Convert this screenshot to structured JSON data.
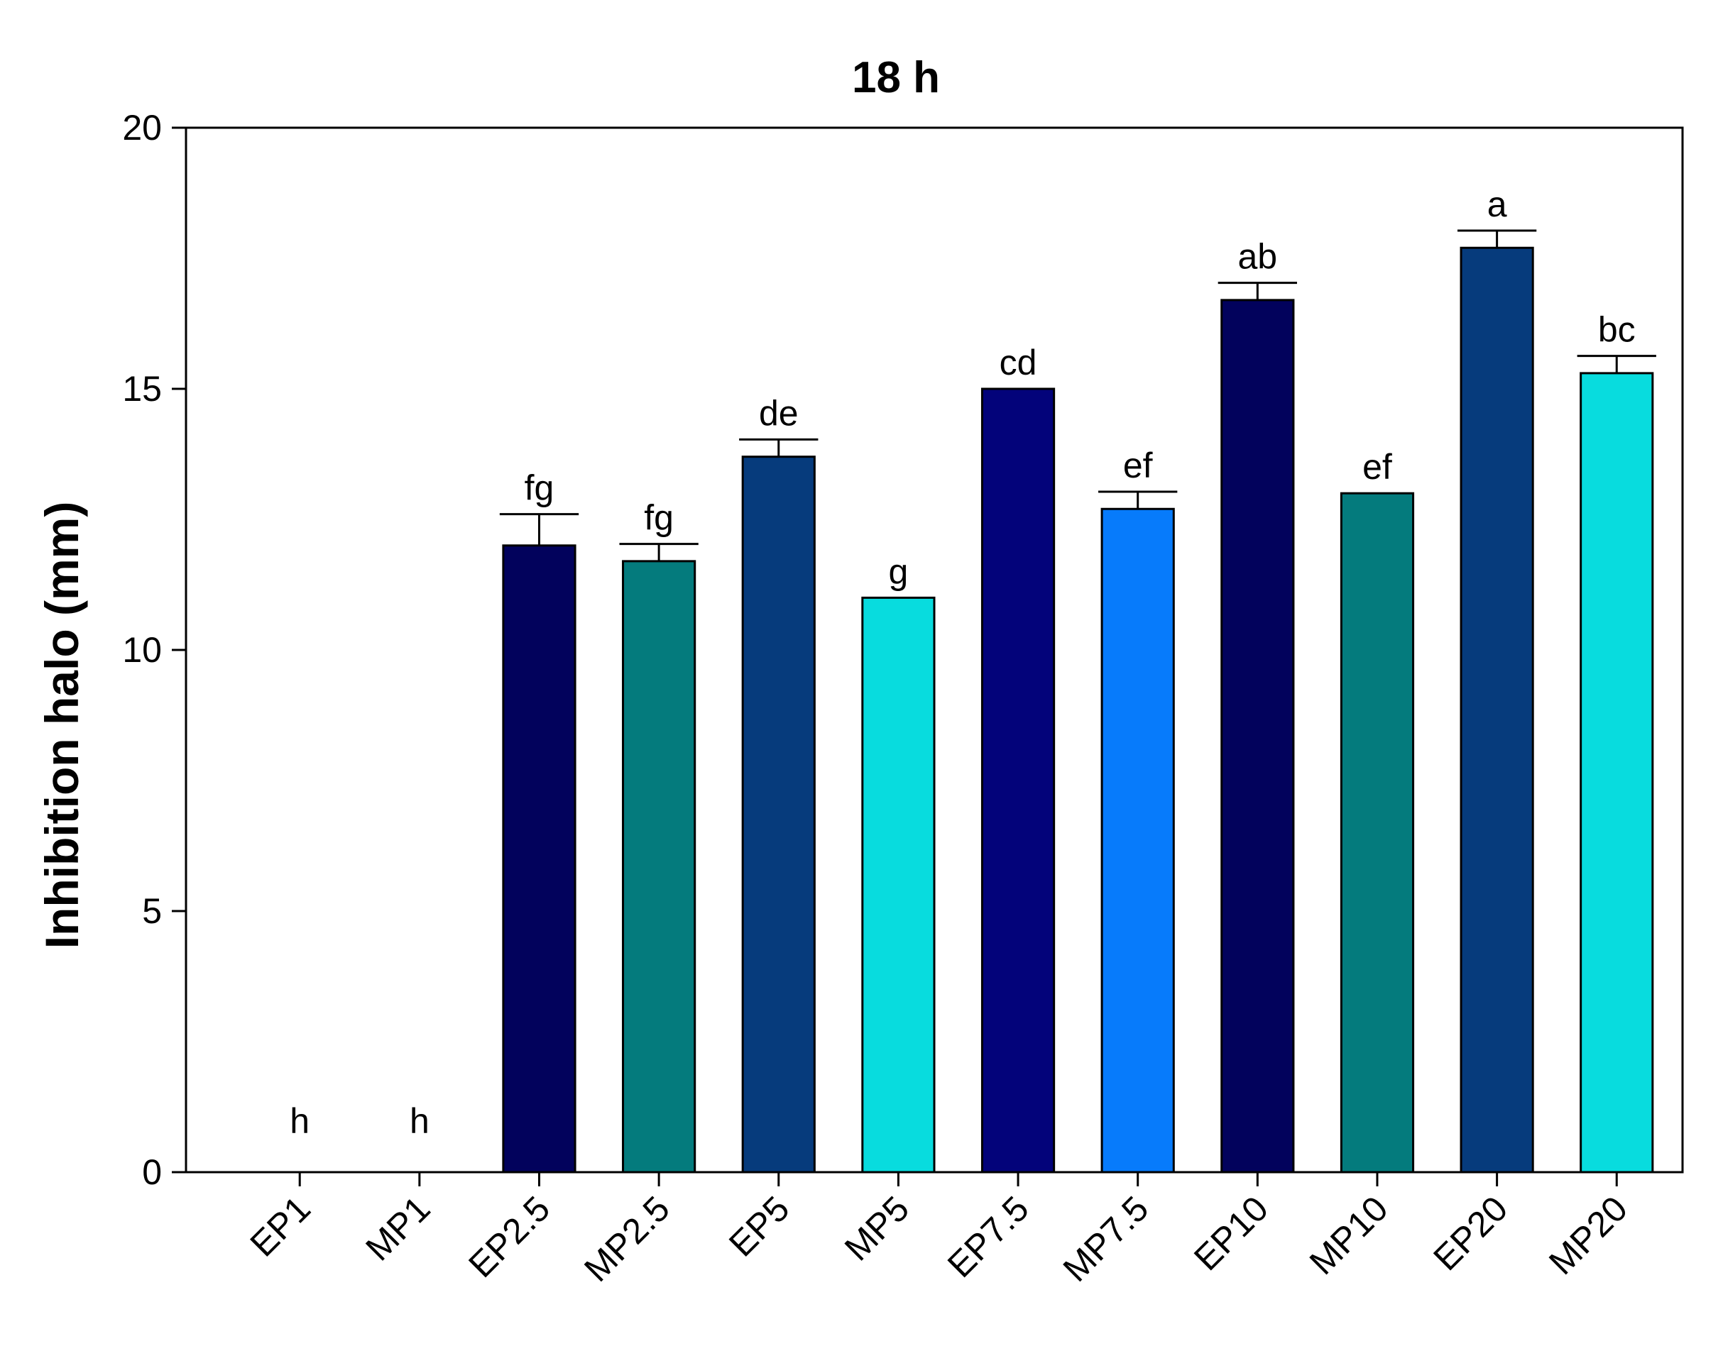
{
  "chart_data": {
    "type": "bar",
    "title": "18 h",
    "xlabel": "",
    "ylabel": "Inhibition halo (mm)",
    "ylim": [
      0,
      20
    ],
    "yticks": [
      "0",
      "5",
      "10",
      "15",
      "20"
    ],
    "grid": false,
    "categories": [
      "EP1",
      "MP1",
      "EP2.5",
      "MP2.5",
      "EP5",
      "MP5",
      "EP7.5",
      "MP7.5",
      "EP10",
      "MP10",
      "EP20",
      "MP20"
    ],
    "values": [
      0,
      0,
      12.0,
      11.7,
      13.7,
      11.0,
      15.0,
      12.7,
      16.7,
      13.0,
      17.7,
      15.3
    ],
    "errors": [
      0,
      0,
      0.6,
      0.33,
      0.33,
      0,
      0,
      0.33,
      0.33,
      0,
      0.33,
      0.33
    ],
    "significance": [
      "h",
      "h",
      "fg",
      "fg",
      "de",
      "g",
      "cd",
      "ef",
      "ab",
      "ef",
      "a",
      "bc"
    ],
    "colors": [
      "#0b0b5e",
      "#0b0b5e",
      "#02025c",
      "#047b7d",
      "#063b7c",
      "#08dcde",
      "#03037a",
      "#077bfb",
      "#02025c",
      "#047b7d",
      "#063b7c",
      "#08dcde"
    ]
  }
}
